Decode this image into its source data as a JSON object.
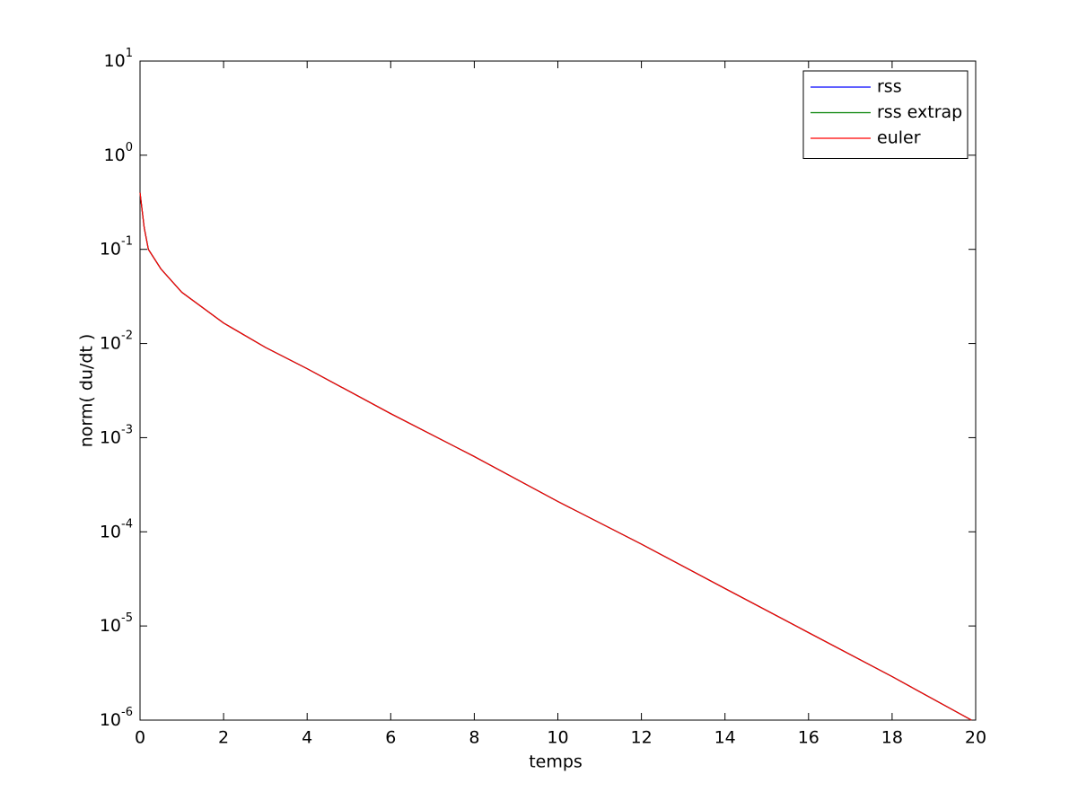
{
  "chart_data": {
    "type": "line",
    "xlabel": "temps",
    "ylabel": "norm( du/dt )",
    "x": [
      0,
      0.1,
      0.2,
      0.5,
      1,
      2,
      3,
      4,
      6,
      8,
      10,
      12,
      14,
      16,
      18,
      19.9
    ],
    "series": [
      {
        "name": "rss",
        "color": "#0000ff",
        "values": [
          0.4,
          0.17,
          0.1,
          0.062,
          0.035,
          0.0165,
          0.0091,
          0.0054,
          0.0018,
          0.00063,
          0.00021,
          7.4e-05,
          2.5e-05,
          8.5e-06,
          2.9e-06,
          1e-06
        ]
      },
      {
        "name": "rss extrap",
        "color": "#008000",
        "values": [
          0.4,
          0.17,
          0.1,
          0.062,
          0.035,
          0.0165,
          0.0091,
          0.0054,
          0.0018,
          0.00063,
          0.00021,
          7.4e-05,
          2.5e-05,
          8.5e-06,
          2.9e-06,
          1e-06
        ]
      },
      {
        "name": "euler",
        "color": "#ff0000",
        "values": [
          0.4,
          0.17,
          0.1,
          0.062,
          0.035,
          0.0165,
          0.0091,
          0.0054,
          0.0018,
          0.00063,
          0.00021,
          7.4e-05,
          2.5e-05,
          8.5e-06,
          2.9e-06,
          1e-06
        ]
      }
    ],
    "xlim": [
      0,
      20
    ],
    "xticks": [
      0,
      2,
      4,
      6,
      8,
      10,
      12,
      14,
      16,
      18,
      20
    ],
    "ylim": [
      1e-06,
      10
    ],
    "ylog": true,
    "yticks": [
      {
        "value": 1e-06,
        "label": "10^-6"
      },
      {
        "value": 1e-05,
        "label": "10^-5"
      },
      {
        "value": 0.0001,
        "label": "10^-4"
      },
      {
        "value": 0.001,
        "label": "10^-3"
      },
      {
        "value": 0.01,
        "label": "10^-2"
      },
      {
        "value": 0.1,
        "label": "10^-1"
      },
      {
        "value": 1,
        "label": "10^0"
      },
      {
        "value": 10,
        "label": "10^1"
      }
    ],
    "legend": "upper right"
  }
}
